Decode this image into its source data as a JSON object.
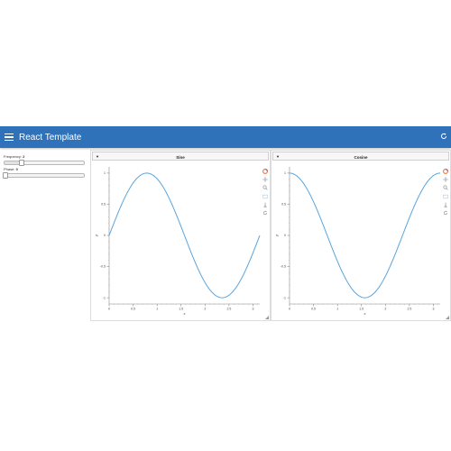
{
  "app": {
    "title": "React Template"
  },
  "controls": {
    "frequency": {
      "label": "Frequency",
      "value": "2",
      "fraction": 0.2
    },
    "phase": {
      "label": "Phase",
      "value": "0",
      "fraction": 0.0
    }
  },
  "panels": [
    {
      "title": "Sine",
      "caret": "▼"
    },
    {
      "title": "Cosine",
      "caret": "▼"
    }
  ],
  "toolbar": {
    "icons": [
      "bokeh-logo-icon",
      "pan-icon",
      "zoom-icon",
      "box-zoom-icon",
      "wheel-zoom-icon",
      "reset-icon"
    ]
  },
  "colors": {
    "appbar": "#2f72b9",
    "line": "#5aa4dc"
  },
  "chart_data": [
    {
      "type": "line",
      "title": "",
      "xlabel": "x",
      "ylabel": "y",
      "xlim": [
        0,
        3.14159
      ],
      "ylim": [
        -1.1,
        1.1
      ],
      "xticks": [
        "0",
        "0.5",
        "1",
        "1.5",
        "2",
        "2.5",
        "3"
      ],
      "yticks": [
        "-1",
        "-0.5",
        "0",
        "0.5",
        "1"
      ],
      "function": "sin",
      "frequency": 2,
      "series": [
        {
          "x": [
            0,
            0.2,
            0.4,
            0.6,
            0.785,
            1.0,
            1.2,
            1.4,
            1.571,
            1.8,
            2.0,
            2.2,
            2.356,
            2.6,
            2.8,
            3.0,
            3.14159
          ],
          "y": [
            0,
            0.389,
            0.717,
            0.932,
            1.0,
            0.909,
            0.675,
            0.335,
            0,
            -0.443,
            -0.757,
            -0.952,
            -1.0,
            -0.886,
            -0.631,
            -0.279,
            0
          ]
        }
      ]
    },
    {
      "type": "line",
      "title": "",
      "xlabel": "x",
      "ylabel": "y",
      "xlim": [
        0,
        3.14159
      ],
      "ylim": [
        -1.1,
        1.1
      ],
      "xticks": [
        "0",
        "0.5",
        "1",
        "1.5",
        "2",
        "2.5",
        "3"
      ],
      "yticks": [
        "-1",
        "-0.5",
        "0",
        "0.5",
        "1"
      ],
      "function": "cos",
      "frequency": 2,
      "series": [
        {
          "x": [
            0,
            0.2,
            0.4,
            0.6,
            0.785,
            1.0,
            1.2,
            1.4,
            1.571,
            1.8,
            2.0,
            2.2,
            2.356,
            2.6,
            2.8,
            3.0,
            3.14159
          ],
          "y": [
            1,
            0.921,
            0.697,
            0.362,
            0,
            -0.416,
            -0.737,
            -0.942,
            -1.0,
            -0.897,
            -0.654,
            -0.307,
            0,
            0.465,
            0.776,
            0.96,
            1.0
          ]
        }
      ]
    }
  ]
}
